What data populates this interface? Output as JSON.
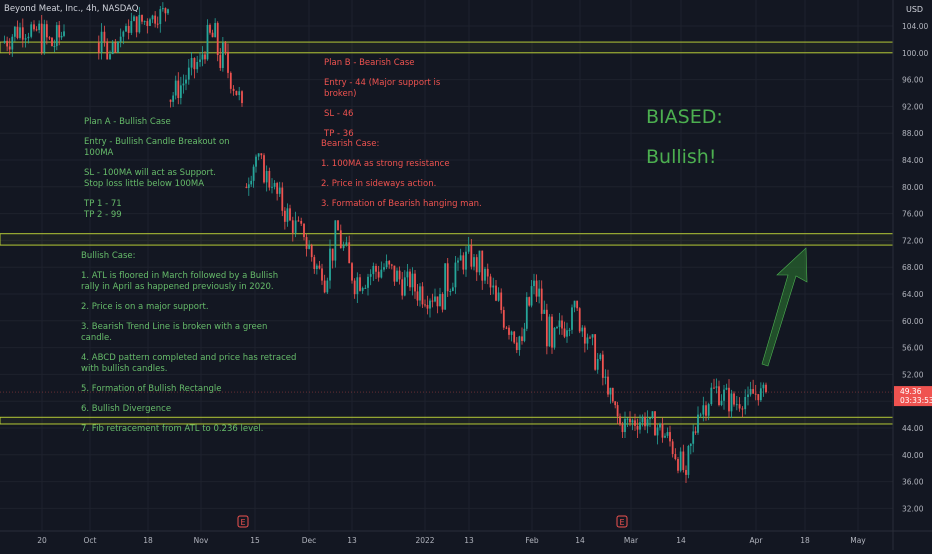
{
  "symbol_label": "Beyond Meat, Inc., 4h, NASDAQ",
  "currency": "USD",
  "chart_data": {
    "type": "candlestick",
    "y_ticks": [
      "104.00",
      "100.00",
      "96.00",
      "92.00",
      "88.00",
      "84.00",
      "80.00",
      "76.00",
      "72.00",
      "68.00",
      "64.00",
      "60.00",
      "56.00",
      "52.00",
      "48.00",
      "44.00",
      "40.00",
      "36.00",
      "32.00"
    ],
    "y_tick_values": [
      104,
      100,
      96,
      92,
      88,
      84,
      80,
      76,
      72,
      68,
      64,
      60,
      56,
      52,
      48,
      44,
      40,
      36,
      32
    ],
    "ylim": [
      29,
      107
    ],
    "x_tick_labels": [
      "20",
      "Oct",
      "18",
      "Nov",
      "15",
      "Dec",
      "13",
      "2022",
      "13",
      "Feb",
      "14",
      "Mar",
      "14",
      "Apr",
      "18",
      "May"
    ],
    "last_price": "49.36",
    "countdown": "03:33:53",
    "price_zones": [
      {
        "from": 100.0,
        "to": 101.6
      },
      {
        "from": 71.3,
        "to": 73.0
      },
      {
        "from": 44.6,
        "to": 45.6
      }
    ],
    "earnings_markers": [
      "E",
      "E"
    ],
    "colors": {
      "up": "#26a69a",
      "down": "#ef5350",
      "zone": "#b5c936",
      "arrow": "#2e7d32",
      "background": "#131722"
    },
    "segments": [
      {
        "from": 2,
        "to": 20,
        "open": 101.5,
        "close": 103.8,
        "low": 99.4,
        "high": 108.0
      },
      {
        "from": 20,
        "to": 34,
        "open": 103.8,
        "close": 103.5,
        "low": 100.8,
        "high": 108.0
      },
      {
        "from": 34,
        "to": 52,
        "open": 103.5,
        "close": 101.0,
        "low": 97.6,
        "high": 108.0
      },
      {
        "from": 52,
        "to": 64,
        "open": 101.0,
        "close": 103.2,
        "low": 99.0,
        "high": 108.0
      },
      {
        "from": 96,
        "to": 110,
        "open": 101.5,
        "close": 99.8,
        "low": 99.0,
        "high": 108.0
      },
      {
        "from": 110,
        "to": 126,
        "open": 99.8,
        "close": 104.0,
        "low": 100.0,
        "high": 108.0
      },
      {
        "from": 126,
        "to": 150,
        "open": 104.0,
        "close": 105.0,
        "low": 102.0,
        "high": 108.0
      },
      {
        "from": 150,
        "to": 168,
        "open": 105.0,
        "close": 106.5,
        "low": 103.0,
        "high": 108.0
      },
      {
        "from": 168,
        "to": 186,
        "open": 93.0,
        "close": 96.0,
        "low": 91.5,
        "high": 98.5
      },
      {
        "from": 186,
        "to": 200,
        "open": 96.0,
        "close": 99.0,
        "low": 94.0,
        "high": 101.5
      },
      {
        "from": 200,
        "to": 210,
        "open": 99.0,
        "close": 103.0,
        "low": 97.0,
        "high": 105.0
      },
      {
        "from": 210,
        "to": 228,
        "open": 103.0,
        "close": 97.0,
        "low": 95.5,
        "high": 108.0
      },
      {
        "from": 228,
        "to": 242,
        "open": 97.0,
        "close": 92.5,
        "low": 91.5,
        "high": 98.0
      },
      {
        "from": 244,
        "to": 256,
        "open": 80.0,
        "close": 84.5,
        "low": 78.5,
        "high": 85.5
      },
      {
        "from": 256,
        "to": 272,
        "open": 84.5,
        "close": 80.0,
        "low": 78.0,
        "high": 85.0
      },
      {
        "from": 272,
        "to": 290,
        "open": 80.0,
        "close": 75.0,
        "low": 73.0,
        "high": 81.0
      },
      {
        "from": 290,
        "to": 304,
        "open": 75.0,
        "close": 72.5,
        "low": 70.0,
        "high": 77.0
      },
      {
        "from": 304,
        "to": 322,
        "open": 72.5,
        "close": 66.0,
        "low": 63.0,
        "high": 73.0
      },
      {
        "from": 322,
        "to": 338,
        "open": 66.0,
        "close": 73.5,
        "low": 64.0,
        "high": 75.0
      },
      {
        "from": 338,
        "to": 352,
        "open": 73.5,
        "close": 66.0,
        "low": 63.5,
        "high": 74.5
      },
      {
        "from": 352,
        "to": 384,
        "open": 66.0,
        "close": 68.0,
        "low": 61.5,
        "high": 70.5
      },
      {
        "from": 384,
        "to": 410,
        "open": 68.0,
        "close": 65.0,
        "low": 62.0,
        "high": 70.0
      },
      {
        "from": 410,
        "to": 440,
        "open": 65.0,
        "close": 64.0,
        "low": 58.5,
        "high": 68.0
      },
      {
        "from": 440,
        "to": 458,
        "open": 64.0,
        "close": 69.0,
        "low": 61.0,
        "high": 72.5
      },
      {
        "from": 458,
        "to": 474,
        "open": 69.0,
        "close": 69.5,
        "low": 66.0,
        "high": 73.5
      },
      {
        "from": 474,
        "to": 496,
        "open": 69.5,
        "close": 63.0,
        "low": 60.0,
        "high": 70.5
      },
      {
        "from": 496,
        "to": 522,
        "open": 63.0,
        "close": 57.0,
        "low": 53.5,
        "high": 65.0
      },
      {
        "from": 522,
        "to": 534,
        "open": 57.0,
        "close": 66.0,
        "low": 55.0,
        "high": 68.0
      },
      {
        "from": 534,
        "to": 552,
        "open": 66.0,
        "close": 56.0,
        "low": 55.0,
        "high": 67.0
      },
      {
        "from": 552,
        "to": 572,
        "open": 56.0,
        "close": 62.0,
        "low": 54.0,
        "high": 63.5
      },
      {
        "from": 572,
        "to": 590,
        "open": 62.0,
        "close": 57.5,
        "low": 55.0,
        "high": 63.0
      },
      {
        "from": 590,
        "to": 608,
        "open": 57.5,
        "close": 49.0,
        "low": 48.0,
        "high": 58.0
      },
      {
        "from": 608,
        "to": 620,
        "open": 49.0,
        "close": 44.5,
        "low": 42.0,
        "high": 50.0
      },
      {
        "from": 620,
        "to": 650,
        "open": 44.5,
        "close": 45.5,
        "low": 42.5,
        "high": 48.5
      },
      {
        "from": 650,
        "to": 670,
        "open": 45.5,
        "close": 42.0,
        "low": 40.0,
        "high": 46.5
      },
      {
        "from": 670,
        "to": 686,
        "open": 42.0,
        "close": 37.0,
        "low": 35.8,
        "high": 43.0
      },
      {
        "from": 686,
        "to": 698,
        "open": 37.0,
        "close": 46.0,
        "low": 36.5,
        "high": 47.5
      },
      {
        "from": 698,
        "to": 714,
        "open": 46.0,
        "close": 50.0,
        "low": 45.0,
        "high": 53.0
      },
      {
        "from": 714,
        "to": 734,
        "open": 50.0,
        "close": 47.5,
        "low": 45.5,
        "high": 53.0
      },
      {
        "from": 734,
        "to": 748,
        "open": 47.5,
        "close": 49.0,
        "low": 45.5,
        "high": 51.5
      },
      {
        "from": 748,
        "to": 766,
        "open": 49.0,
        "close": 49.36,
        "low": 47.0,
        "high": 51.5
      }
    ]
  },
  "plan_a": {
    "title": "Plan A - Bullish Case",
    "entry": "Entry - Bullish Candle Breakout on\n100MA",
    "sl": "SL - 100MA will act as Support.\nStop loss little below 100MA",
    "tp": "TP 1 - 71\nTP 2 - 99"
  },
  "bullish_case": {
    "title": "Bullish Case:",
    "items": [
      "1. ATL is floored in March followed by a Bullish\nrally in April as happened previously in 2020.",
      "2. Price is on a major support.",
      "3. Bearish Trend Line is broken with a green\ncandle.",
      "4. ABCD pattern completed and price has retraced\nwith bullish candles.",
      "5. Formation of Bullish Rectangle",
      "6. Bullish Divergence",
      "7. Fib retracement from ATL to 0.236 level."
    ]
  },
  "plan_b": {
    "title": "Plan B - Bearish Case",
    "entry": "Entry - 44 (Major support is\nbroken)",
    "sl": "SL - 46",
    "tp": "TP - 36"
  },
  "bearish_case": {
    "title": "Bearish Case:",
    "items": [
      "1. 100MA as strong resistance",
      "2. Price in sideways action.",
      "3. Formation of Bearish hanging man."
    ]
  },
  "bias": {
    "label": "BIASED:",
    "value": "Bullish!"
  }
}
